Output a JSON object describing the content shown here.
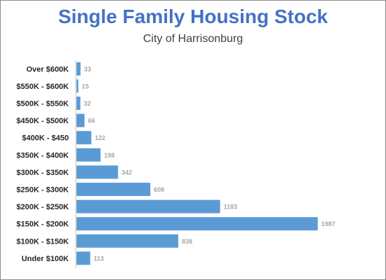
{
  "chart_data": {
    "type": "bar",
    "orientation": "horizontal",
    "title": "Single Family Housing Stock",
    "subtitle": "City of Harrisonburg",
    "categories": [
      "Over $600K",
      "$550K - $600K",
      "$500K - $550K",
      "$450K - $500K",
      "$400K - $450",
      "$350K - $400K",
      "$300K - $350K",
      "$250K - $300K",
      "$200K - $250K",
      "$150K - $200K",
      "$100K - $150K",
      "Under $100K"
    ],
    "values": [
      33,
      15,
      32,
      66,
      122,
      198,
      342,
      608,
      1183,
      1987,
      838,
      113
    ],
    "xlim": [
      0,
      2000
    ],
    "bar_color": "#5b9bd5",
    "grid": false,
    "legend": "none"
  }
}
